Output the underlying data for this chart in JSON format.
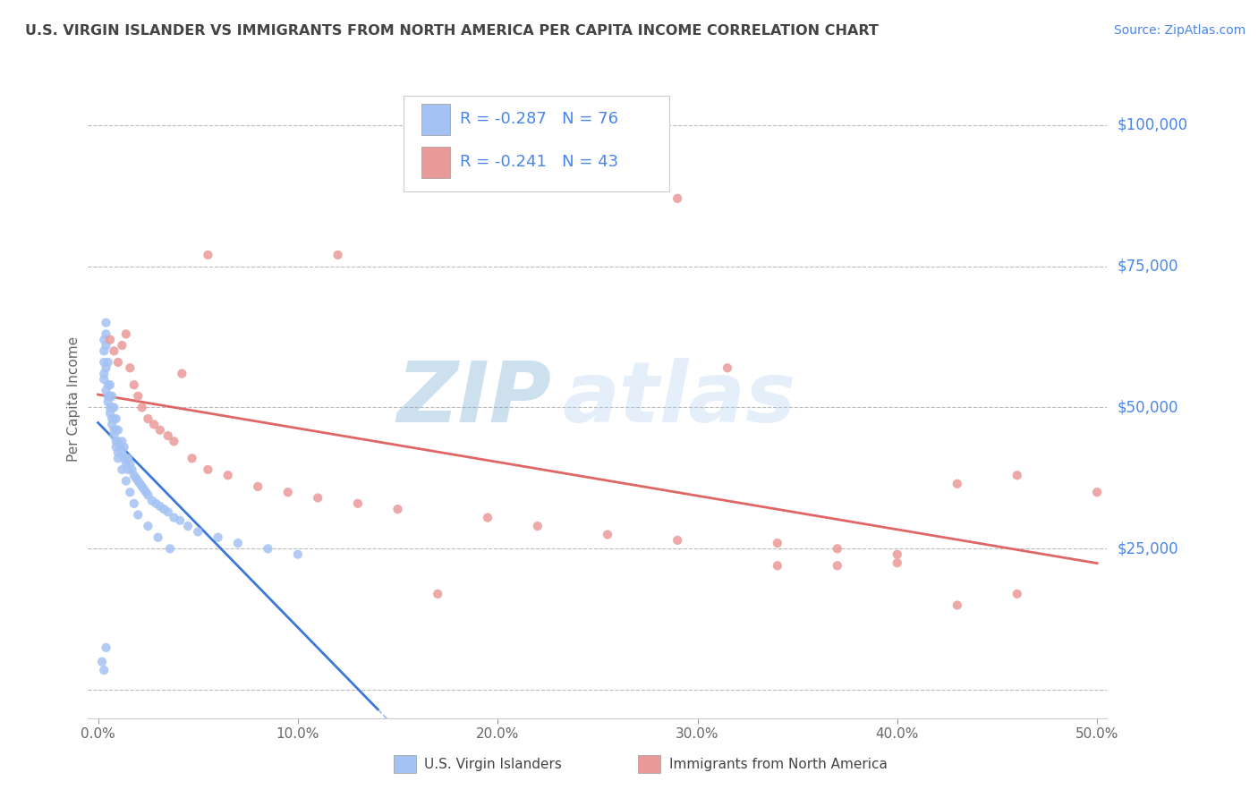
{
  "title": "U.S. VIRGIN ISLANDER VS IMMIGRANTS FROM NORTH AMERICA PER CAPITA INCOME CORRELATION CHART",
  "source": "Source: ZipAtlas.com",
  "ylabel": "Per Capita Income",
  "xlim": [
    -0.005,
    0.505
  ],
  "ylim": [
    -5000,
    108000
  ],
  "yticks": [
    0,
    25000,
    50000,
    75000,
    100000
  ],
  "xticks": [
    0.0,
    0.1,
    0.2,
    0.3,
    0.4,
    0.5
  ],
  "xtick_labels": [
    "0.0%",
    "10.0%",
    "20.0%",
    "30.0%",
    "40.0%",
    "50.0%"
  ],
  "blue_color": "#a4c2f4",
  "pink_color": "#ea9999",
  "blue_line_color": "#3c78d8",
  "pink_line_color": "#e06666",
  "blue_line_dash": false,
  "pink_line_dash": false,
  "axis_label_color": "#4a86e8",
  "title_color": "#444444",
  "grid_color": "#bbbbbb",
  "r1": "-0.287",
  "n1": "76",
  "r2": "-0.241",
  "n2": "43",
  "legend1": "U.S. Virgin Islanders",
  "legend2": "Immigrants from North America",
  "blue_x": [
    0.002,
    0.003,
    0.003,
    0.003,
    0.003,
    0.004,
    0.004,
    0.004,
    0.004,
    0.005,
    0.005,
    0.005,
    0.006,
    0.006,
    0.006,
    0.007,
    0.007,
    0.007,
    0.008,
    0.008,
    0.008,
    0.009,
    0.009,
    0.009,
    0.01,
    0.01,
    0.01,
    0.011,
    0.012,
    0.012,
    0.013,
    0.013,
    0.014,
    0.015,
    0.015,
    0.016,
    0.017,
    0.018,
    0.019,
    0.02,
    0.021,
    0.022,
    0.023,
    0.024,
    0.025,
    0.027,
    0.029,
    0.031,
    0.033,
    0.035,
    0.038,
    0.041,
    0.045,
    0.05,
    0.06,
    0.07,
    0.085,
    0.1,
    0.003,
    0.004,
    0.005,
    0.006,
    0.007,
    0.008,
    0.009,
    0.01,
    0.012,
    0.014,
    0.016,
    0.018,
    0.02,
    0.025,
    0.03,
    0.036,
    0.003,
    0.004
  ],
  "blue_y": [
    5000,
    60000,
    62000,
    58000,
    56000,
    65000,
    63000,
    61000,
    57000,
    52000,
    54000,
    58000,
    50000,
    52000,
    54000,
    48000,
    50000,
    52000,
    46000,
    48000,
    50000,
    44000,
    46000,
    48000,
    42000,
    44000,
    46000,
    43000,
    42000,
    44000,
    41000,
    43000,
    40000,
    39000,
    41000,
    40000,
    39000,
    38000,
    37500,
    37000,
    36500,
    36000,
    35500,
    35000,
    34500,
    33500,
    33000,
    32500,
    32000,
    31500,
    30500,
    30000,
    29000,
    28000,
    27000,
    26000,
    25000,
    24000,
    55000,
    53000,
    51000,
    49000,
    47000,
    45000,
    43000,
    41000,
    39000,
    37000,
    35000,
    33000,
    31000,
    29000,
    27000,
    25000,
    3500,
    7500
  ],
  "pink_x": [
    0.006,
    0.008,
    0.01,
    0.012,
    0.014,
    0.016,
    0.018,
    0.02,
    0.022,
    0.025,
    0.028,
    0.031,
    0.035,
    0.038,
    0.042,
    0.047,
    0.055,
    0.065,
    0.08,
    0.095,
    0.11,
    0.13,
    0.15,
    0.17,
    0.195,
    0.22,
    0.255,
    0.29,
    0.315,
    0.34,
    0.37,
    0.4,
    0.43,
    0.46,
    0.055,
    0.12,
    0.34,
    0.4,
    0.46,
    0.29,
    0.37,
    0.43,
    0.5
  ],
  "pink_y": [
    62000,
    60000,
    58000,
    61000,
    63000,
    57000,
    54000,
    52000,
    50000,
    48000,
    47000,
    46000,
    45000,
    44000,
    56000,
    41000,
    39000,
    38000,
    36000,
    35000,
    34000,
    33000,
    32000,
    17000,
    30500,
    29000,
    27500,
    26500,
    57000,
    26000,
    25000,
    24000,
    36500,
    38000,
    77000,
    77000,
    22000,
    22500,
    17000,
    87000,
    22000,
    15000,
    35000
  ]
}
